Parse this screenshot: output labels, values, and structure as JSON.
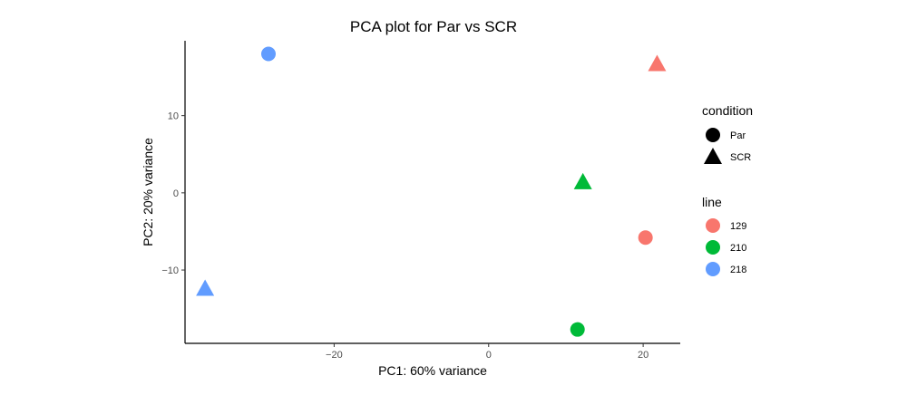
{
  "chart_data": {
    "type": "scatter",
    "title": "PCA plot for Par vs SCR",
    "xlabel": "PC1: 60% variance",
    "ylabel": "PC2: 20% variance",
    "xlim": [
      -39.3,
      24.8
    ],
    "ylim": [
      -19.5,
      19.7
    ],
    "xticks": [
      {
        "value": -20,
        "label": "−20"
      },
      {
        "value": 0,
        "label": "0"
      },
      {
        "value": 20,
        "label": "20"
      }
    ],
    "yticks": [
      {
        "value": -10,
        "label": "−10"
      },
      {
        "value": 0,
        "label": "0"
      },
      {
        "value": 10,
        "label": "10"
      }
    ],
    "grid": false,
    "legend_position": "right",
    "points": [
      {
        "x": -28.5,
        "y": 18.0,
        "condition": "Par",
        "line": "218"
      },
      {
        "x": 21.8,
        "y": 16.7,
        "condition": "SCR",
        "line": "129"
      },
      {
        "x": 12.2,
        "y": 1.4,
        "condition": "SCR",
        "line": "210"
      },
      {
        "x": 20.3,
        "y": -5.8,
        "condition": "Par",
        "line": "129"
      },
      {
        "x": -36.7,
        "y": -12.4,
        "condition": "SCR",
        "line": "218"
      },
      {
        "x": 11.5,
        "y": -17.7,
        "condition": "Par",
        "line": "210"
      }
    ],
    "legends": {
      "condition": {
        "title": "condition",
        "items": [
          {
            "label": "Par",
            "shape": "circle"
          },
          {
            "label": "SCR",
            "shape": "triangle"
          }
        ]
      },
      "line": {
        "title": "line",
        "items": [
          {
            "label": "129",
            "color": "#F8766D"
          },
          {
            "label": "210",
            "color": "#00BA38"
          },
          {
            "label": "218",
            "color": "#619CFF"
          }
        ]
      }
    }
  }
}
